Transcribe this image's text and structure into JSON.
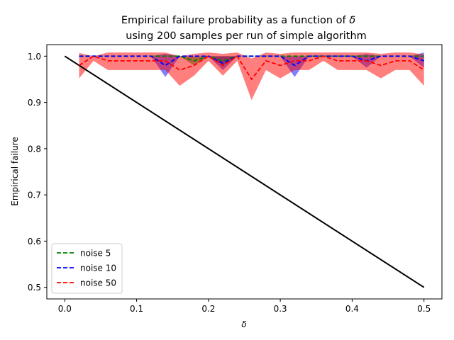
{
  "chart_data": {
    "type": "line",
    "title_line1": "Empirical failure probability as a function of",
    "title_symbol": "δ",
    "title_line2": "using 200 samples per run of simple algorithm",
    "xlabel": "δ",
    "ylabel": "Empirical failure",
    "xlim": [
      -0.025,
      0.525
    ],
    "ylim": [
      0.475,
      1.025
    ],
    "xticks": [
      0.0,
      0.1,
      0.2,
      0.3,
      0.4,
      0.5
    ],
    "xtick_labels": [
      "0.0",
      "0.1",
      "0.2",
      "0.3",
      "0.4",
      "0.5"
    ],
    "yticks": [
      0.5,
      0.6,
      0.7,
      0.8,
      0.9,
      1.0
    ],
    "ytick_labels": [
      "0.5",
      "0.6",
      "0.7",
      "0.8",
      "0.9",
      "1.0"
    ],
    "grid": false,
    "legend_position": "lower-left",
    "x": [
      0.02,
      0.04,
      0.06,
      0.08,
      0.1,
      0.12,
      0.14,
      0.16,
      0.18,
      0.2,
      0.22,
      0.24,
      0.26,
      0.28,
      0.3,
      0.32,
      0.34,
      0.36,
      0.38,
      0.4,
      0.42,
      0.44,
      0.46,
      0.48,
      0.5
    ],
    "reference_line": {
      "x": [
        0.0,
        0.5
      ],
      "y": [
        1.0,
        0.5
      ],
      "color": "#000000"
    },
    "series": [
      {
        "name": "noise 5",
        "color": "#008000",
        "values": [
          1.0,
          1.0,
          1.0,
          1.0,
          1.0,
          1.0,
          1.0,
          1.0,
          0.99,
          1.0,
          0.99,
          1.0,
          1.0,
          1.0,
          1.0,
          1.0,
          1.0,
          1.0,
          1.0,
          1.0,
          1.0,
          1.0,
          1.0,
          1.0,
          1.0
        ],
        "lower": [
          1.0,
          1.0,
          1.0,
          1.0,
          1.0,
          1.0,
          1.0,
          1.0,
          0.98,
          1.0,
          0.98,
          1.0,
          1.0,
          1.0,
          1.0,
          1.0,
          1.0,
          1.0,
          1.0,
          1.0,
          1.0,
          1.0,
          1.0,
          1.0,
          1.0
        ],
        "upper": [
          1.0,
          1.0,
          1.0,
          1.0,
          1.0,
          1.0,
          1.0,
          1.0,
          1.0,
          1.0,
          1.0,
          1.0,
          1.0,
          1.0,
          1.0,
          1.0,
          1.0,
          1.0,
          1.0,
          1.0,
          1.0,
          1.0,
          1.0,
          1.0,
          1.0
        ]
      },
      {
        "name": "noise 10",
        "color": "#0000ff",
        "values": [
          1.0,
          1.0,
          1.0,
          1.0,
          1.0,
          1.0,
          0.98,
          1.0,
          1.0,
          1.0,
          0.985,
          1.0,
          1.0,
          1.0,
          1.0,
          0.98,
          1.0,
          1.0,
          1.0,
          1.0,
          0.99,
          1.0,
          1.0,
          1.0,
          0.99
        ],
        "lower": [
          1.0,
          1.0,
          1.0,
          1.0,
          1.0,
          1.0,
          0.955,
          1.0,
          1.0,
          1.0,
          0.97,
          1.0,
          1.0,
          1.0,
          1.0,
          0.955,
          1.0,
          1.0,
          1.0,
          1.0,
          0.975,
          1.0,
          1.0,
          1.0,
          0.975
        ],
        "upper": [
          1.0,
          1.0,
          1.0,
          1.0,
          1.0,
          1.0,
          1.005,
          1.0,
          1.0,
          1.0,
          1.0,
          1.0,
          1.0,
          1.0,
          1.0,
          1.0,
          1.0,
          1.0,
          1.0,
          1.0,
          1.005,
          1.0,
          1.0,
          1.0,
          1.008
        ]
      },
      {
        "name": "noise 50",
        "color": "#ff0000",
        "values": [
          0.98,
          1.0,
          0.99,
          0.99,
          0.99,
          0.99,
          0.99,
          0.97,
          0.98,
          1.0,
          0.98,
          1.0,
          0.95,
          0.99,
          0.98,
          0.99,
          0.99,
          1.0,
          0.99,
          0.99,
          0.99,
          0.98,
          0.99,
          0.99,
          0.97
        ],
        "lower": [
          0.952,
          0.99,
          0.97,
          0.97,
          0.97,
          0.97,
          0.97,
          0.936,
          0.958,
          0.99,
          0.958,
          0.99,
          0.905,
          0.97,
          0.952,
          0.97,
          0.97,
          0.99,
          0.97,
          0.97,
          0.97,
          0.952,
          0.97,
          0.97,
          0.936
        ],
        "upper": [
          1.007,
          1.0,
          1.008,
          1.008,
          1.008,
          1.008,
          1.008,
          1.0,
          1.005,
          1.008,
          1.005,
          1.008,
          0.995,
          1.008,
          1.005,
          1.008,
          1.008,
          1.008,
          1.008,
          1.008,
          1.008,
          1.005,
          1.008,
          1.008,
          1.004
        ]
      }
    ]
  }
}
